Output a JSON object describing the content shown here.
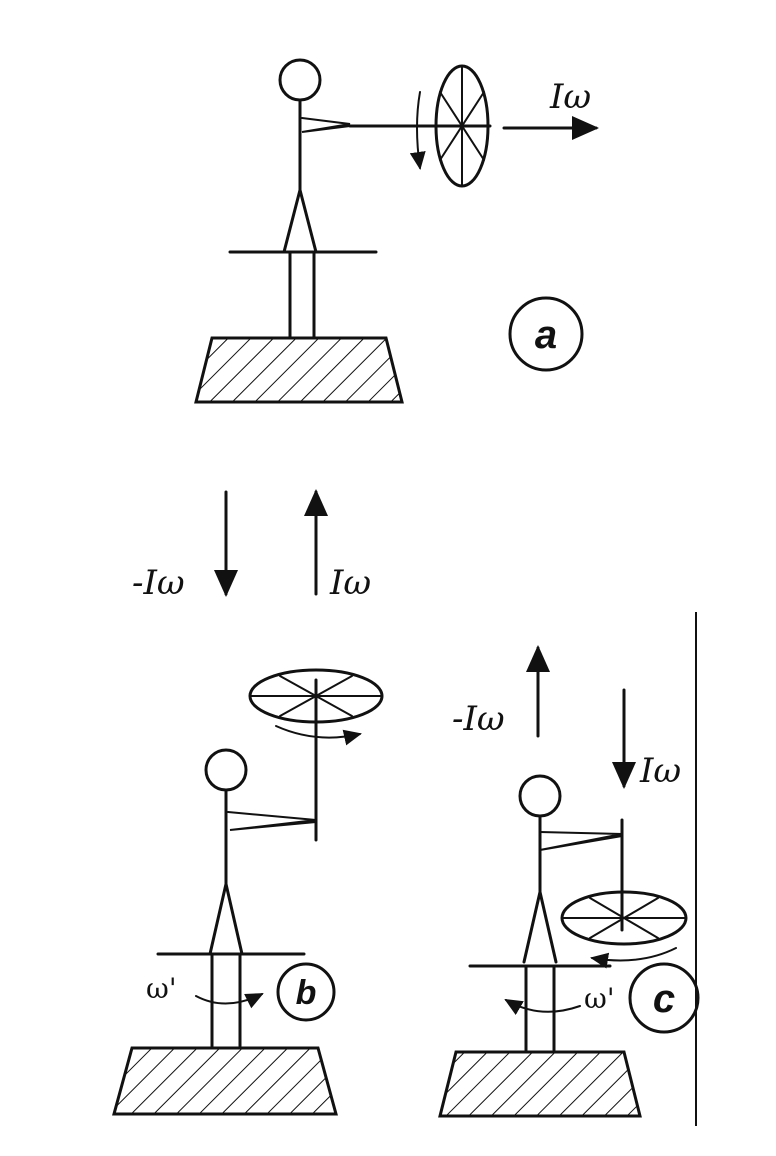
{
  "panels": {
    "a": {
      "badge": "a",
      "momentum_label": "Iω"
    },
    "b": {
      "badge": "b",
      "left_arrow_label": "-Iω",
      "right_arrow_label": "Iω",
      "rotation_label": "ω'"
    },
    "c": {
      "badge": "c",
      "up_arrow_label": "-Iω",
      "down_arrow_label": "Iω",
      "rotation_label": "ω'"
    }
  }
}
